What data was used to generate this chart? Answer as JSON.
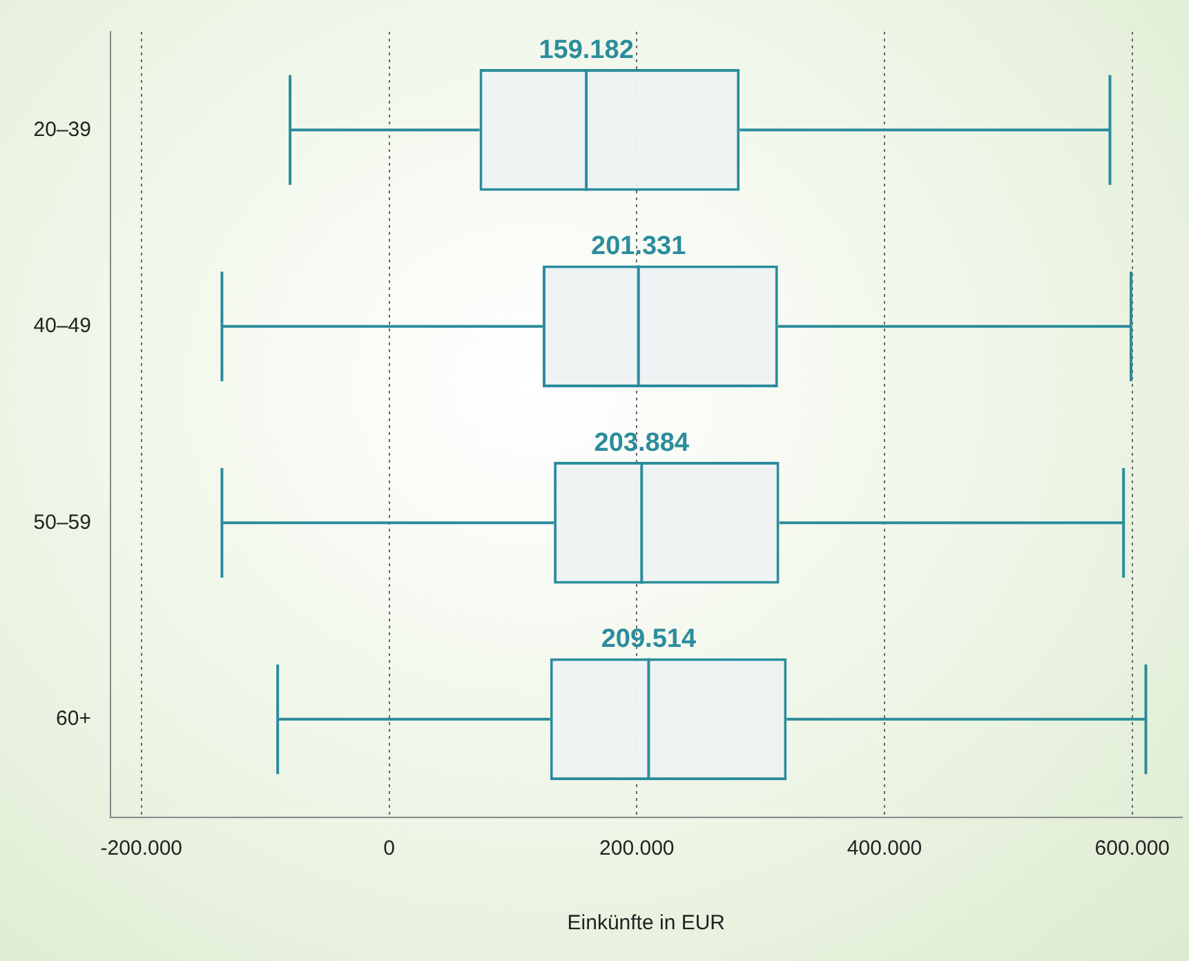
{
  "chart_data": {
    "type": "box",
    "orientation": "horizontal",
    "xlabel": "Einkünfte in EUR",
    "categories": [
      "20–39",
      "40–49",
      "50–59",
      "60+"
    ],
    "series": [
      {
        "color": "#2b8c9c",
        "boxes": [
          {
            "low": -80000,
            "q1": 73000,
            "median": 159182,
            "q3": 283000,
            "high": 582000
          },
          {
            "low": -135000,
            "q1": 124000,
            "median": 201331,
            "q3": 314000,
            "high": 599000
          },
          {
            "low": -135000,
            "q1": 133000,
            "median": 203884,
            "q3": 315000,
            "high": 593000
          },
          {
            "low": -90000,
            "q1": 130000,
            "median": 209514,
            "q3": 321000,
            "high": 611000
          }
        ]
      }
    ],
    "xlim": [
      -225000,
      640000
    ],
    "xticks": [
      {
        "value": -200000,
        "label": "-200.000"
      },
      {
        "value": 0,
        "label": "0"
      },
      {
        "value": 200000,
        "label": "200.000"
      },
      {
        "value": 400000,
        "label": "400.000"
      },
      {
        "value": 600000,
        "label": "600.000"
      }
    ],
    "grid": "x",
    "legend": false,
    "annotations": [
      {
        "text": "159.182",
        "x": 159182,
        "y": "20–39"
      },
      {
        "text": "201.331",
        "x": 201331,
        "y": "40–49"
      },
      {
        "text": "203.884",
        "x": 203884,
        "y": "50–59"
      },
      {
        "text": "209.514",
        "x": 209514,
        "y": "60+"
      }
    ]
  }
}
